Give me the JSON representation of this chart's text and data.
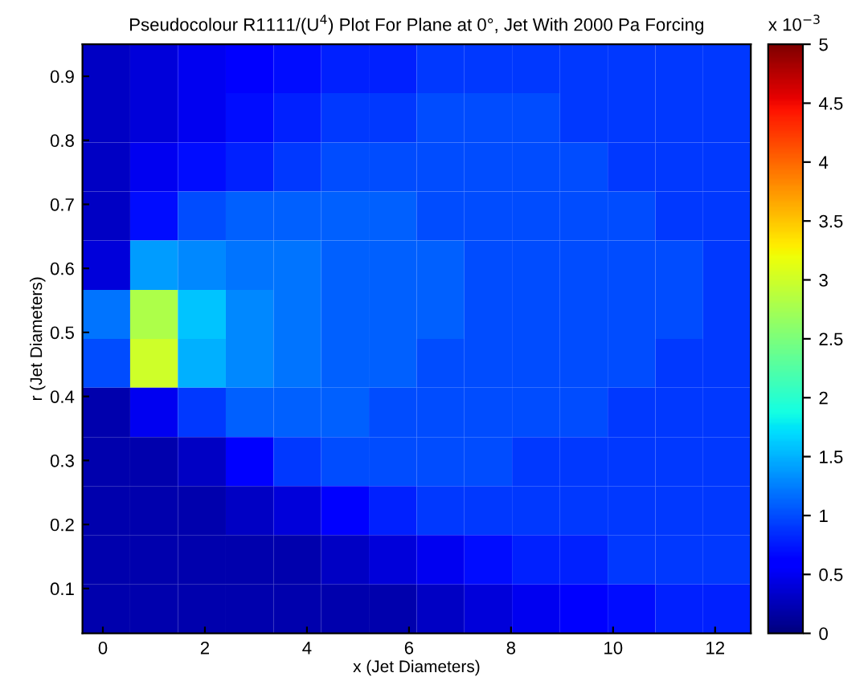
{
  "chart_data": {
    "type": "heatmap",
    "title": "Pseudocolour R1111/(U$^{4}$) Plot For Plane at 0°, Jet With 2000 Pa Forcing",
    "xlabel": "x (Jet Diameters)",
    "ylabel": "r (Jet Diameters)",
    "clabel": "x 10$^{−3}$",
    "x": [
      0.07,
      1.0,
      1.94,
      2.88,
      3.81,
      4.75,
      5.68,
      6.62,
      7.55,
      8.49,
      9.43,
      10.36,
      11.3,
      12.23
    ],
    "y": [
      0.912,
      0.835,
      0.758,
      0.682,
      0.605,
      0.528,
      0.452,
      0.375,
      0.298,
      0.222,
      0.145,
      0.068
    ],
    "xlim": [
      -0.4,
      12.7
    ],
    "ylim": [
      0.03,
      0.95
    ],
    "xticks": [
      0,
      2,
      4,
      6,
      8,
      10,
      12
    ],
    "yticks": [
      0.1,
      0.2,
      0.3,
      0.4,
      0.5,
      0.6,
      0.7,
      0.8,
      0.9
    ],
    "clim": [
      0,
      5
    ],
    "cticks": [
      0,
      0.5,
      1,
      1.5,
      2,
      2.5,
      3,
      3.5,
      4,
      4.5,
      5
    ],
    "cells": [
      [
        0.3,
        0.4,
        0.5,
        0.6,
        0.7,
        0.8,
        0.8,
        0.9,
        0.9,
        0.9,
        0.9,
        0.9,
        0.9,
        0.9
      ],
      [
        0.3,
        0.4,
        0.5,
        0.7,
        0.8,
        0.9,
        0.9,
        1.0,
        1.0,
        1.0,
        0.9,
        0.9,
        0.9,
        0.9
      ],
      [
        0.3,
        0.5,
        0.7,
        0.8,
        0.9,
        1.0,
        1.0,
        1.0,
        1.0,
        1.0,
        1.0,
        0.9,
        0.9,
        0.9
      ],
      [
        0.3,
        0.7,
        1.0,
        1.1,
        1.1,
        1.1,
        1.1,
        1.0,
        1.0,
        1.0,
        1.0,
        1.0,
        0.9,
        0.9
      ],
      [
        0.4,
        1.4,
        1.3,
        1.2,
        1.2,
        1.1,
        1.1,
        1.1,
        1.0,
        1.0,
        1.0,
        1.0,
        1.0,
        0.9
      ],
      [
        1.2,
        2.8,
        1.6,
        1.3,
        1.2,
        1.1,
        1.1,
        1.1,
        1.0,
        1.0,
        1.0,
        1.0,
        1.0,
        0.9
      ],
      [
        1.0,
        3.0,
        1.5,
        1.3,
        1.2,
        1.1,
        1.1,
        1.0,
        1.0,
        1.0,
        1.0,
        1.0,
        0.9,
        0.9
      ],
      [
        0.2,
        0.5,
        0.9,
        1.1,
        1.1,
        1.1,
        1.0,
        1.0,
        1.0,
        1.0,
        1.0,
        0.9,
        0.9,
        0.9
      ],
      [
        0.2,
        0.2,
        0.3,
        0.6,
        0.9,
        1.0,
        1.0,
        1.0,
        1.0,
        0.9,
        0.9,
        0.9,
        0.9,
        0.9
      ],
      [
        0.2,
        0.2,
        0.2,
        0.3,
        0.4,
        0.6,
        0.8,
        0.9,
        0.9,
        0.9,
        0.9,
        0.9,
        0.9,
        0.9
      ],
      [
        0.2,
        0.2,
        0.2,
        0.2,
        0.2,
        0.3,
        0.4,
        0.5,
        0.7,
        0.8,
        0.8,
        0.9,
        0.9,
        0.9
      ],
      [
        0.2,
        0.2,
        0.2,
        0.2,
        0.2,
        0.2,
        0.2,
        0.3,
        0.4,
        0.5,
        0.6,
        0.7,
        0.8,
        0.8
      ]
    ],
    "grid": false
  }
}
